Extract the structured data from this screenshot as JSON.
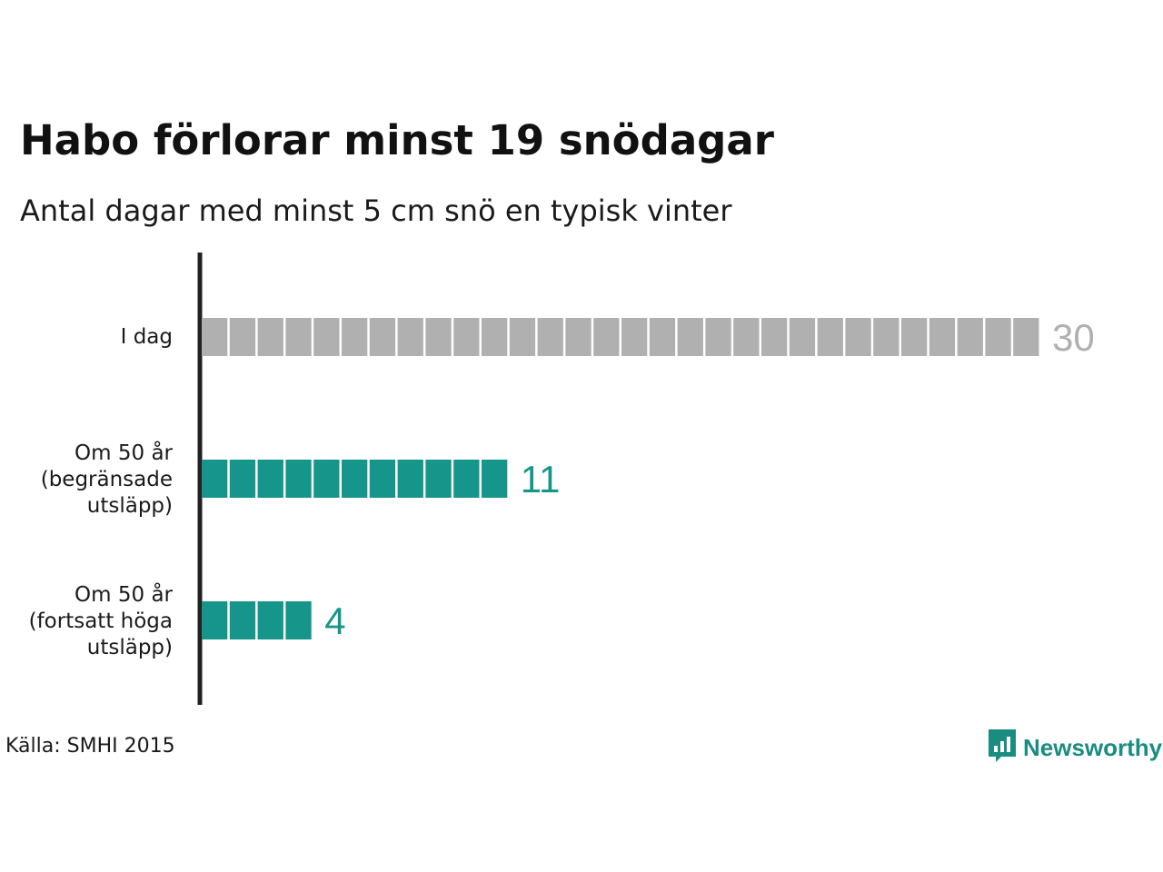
{
  "chart_data": {
    "type": "bar",
    "title": "Habo förlorar minst 19 snödagar",
    "subtitle": "Antal dagar med minst 5 cm snö en typisk vinter",
    "xlabel": "",
    "ylabel": "",
    "categories": [
      [
        "I dag"
      ],
      [
        "Om 50 år",
        "(begränsade",
        "utsläpp)"
      ],
      [
        "Om 50 år",
        "(fortsatt höga",
        "utsläpp)"
      ]
    ],
    "values": [
      30,
      11,
      4
    ],
    "bar_colors": [
      "#b0b0b0",
      "#16968a",
      "#16968a"
    ],
    "value_label_colors": [
      "#b0b0b0",
      "#16968a",
      "#16968a"
    ],
    "xlim": [
      0,
      30
    ],
    "grid": false
  },
  "source": "Källa: SMHI 2015",
  "brand": {
    "name": "Newsworthy",
    "icon": "newsworthy-logo-icon",
    "color": "#1a8c80"
  }
}
